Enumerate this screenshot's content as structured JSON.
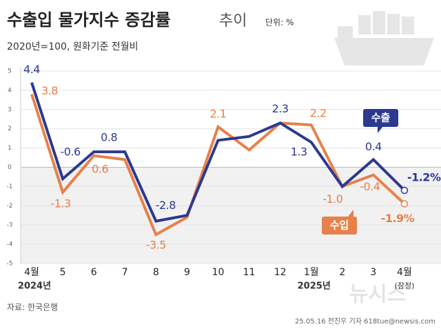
{
  "chart_data": {
    "type": "line",
    "title": "수출입 물가지수 증감률",
    "title_suffix": "추이",
    "unit": "단위: %",
    "subtitle": "2020년=100, 원화기준 전월비",
    "categories": [
      "4월",
      "5",
      "6",
      "7",
      "8",
      "9",
      "10",
      "11",
      "12",
      "1월",
      "2",
      "3",
      "4월"
    ],
    "x_sublabels": [
      "2024년",
      null,
      null,
      null,
      null,
      null,
      null,
      null,
      null,
      "2025년",
      null,
      null,
      "(잠정)"
    ],
    "series": [
      {
        "name": "수출",
        "color": "#2b3990",
        "values": [
          4.4,
          -0.6,
          0.8,
          0.8,
          -2.8,
          -2.5,
          1.4,
          1.6,
          2.3,
          1.3,
          -1.0,
          0.4,
          -1.2
        ],
        "value_labels": [
          "4.4",
          "-0.6",
          "0.8",
          null,
          "-2.8",
          null,
          null,
          null,
          "2.3",
          "1.3",
          null,
          "0.4",
          "-1.2%"
        ]
      },
      {
        "name": "수입",
        "color": "#e8804a",
        "values": [
          3.8,
          -1.3,
          0.6,
          0.4,
          -3.5,
          -2.6,
          2.1,
          0.9,
          2.3,
          2.2,
          -1.0,
          -0.4,
          -1.9
        ],
        "value_labels": [
          "3.8",
          "-1.3",
          "0.6",
          null,
          "-3.5",
          null,
          "2.1",
          null,
          null,
          "2.2",
          "-1.0",
          "-0.4",
          "-1.9%"
        ]
      }
    ],
    "ylim": [
      -5,
      5
    ],
    "yticks": [
      -5,
      -4,
      -3,
      -2,
      -1,
      0,
      1,
      2,
      3,
      4,
      5
    ],
    "source": "자료: 한국은행",
    "credit": "25.05.16 전진우 기자 618tue@newsis.com",
    "watermark": "뉴시스"
  }
}
